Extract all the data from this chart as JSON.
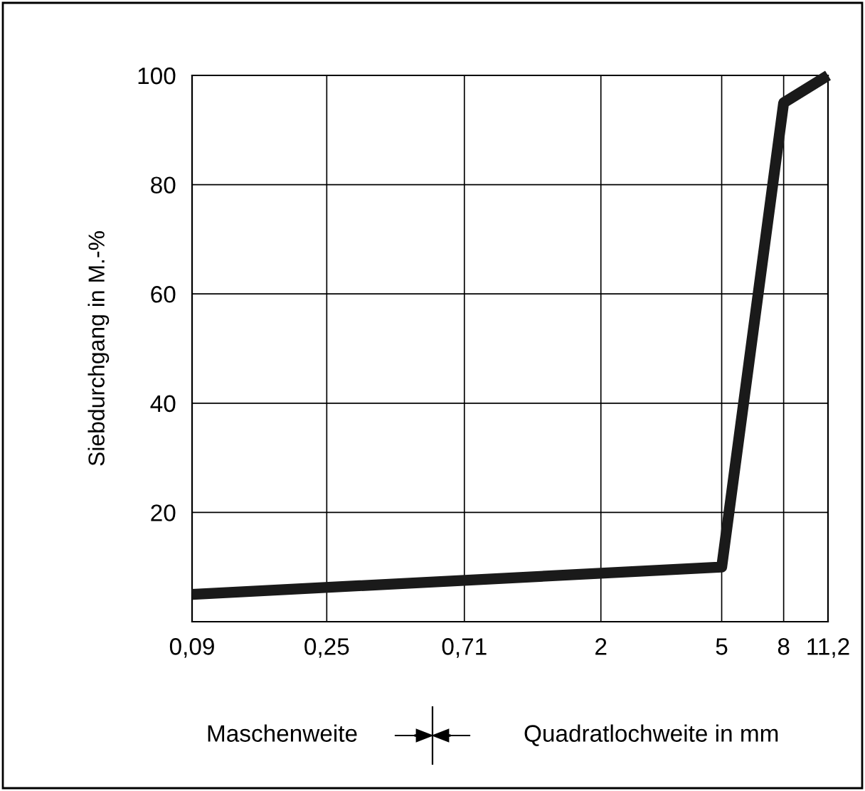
{
  "chart_data": {
    "type": "line",
    "ylabel": "Siebdurchgang in M.-%",
    "x": [
      0.09,
      5,
      8,
      11.2
    ],
    "series": [
      {
        "color": "#1a1a1a",
        "values": [
          5,
          10,
          95,
          100
        ]
      }
    ],
    "log": "x",
    "xlim": [
      0.09,
      11.2
    ],
    "xticks": [
      {
        "value": 0.09,
        "label": "0,09"
      },
      {
        "value": 0.25,
        "label": "0,25"
      },
      {
        "value": 0.71,
        "label": "0,71"
      },
      {
        "value": 2,
        "label": "2"
      },
      {
        "value": 5,
        "label": "5"
      },
      {
        "value": 8,
        "label": "8"
      },
      {
        "value": 11.2,
        "label": "11,2"
      }
    ],
    "ylim": [
      0,
      100
    ],
    "yticks": [
      {
        "value": 0,
        "label": null
      },
      20,
      40,
      60,
      80,
      100
    ],
    "grid": true,
    "line_style": "solid",
    "marker": "none",
    "annotations": [
      "Maschenweite",
      "Quadratlochweite in mm"
    ]
  }
}
